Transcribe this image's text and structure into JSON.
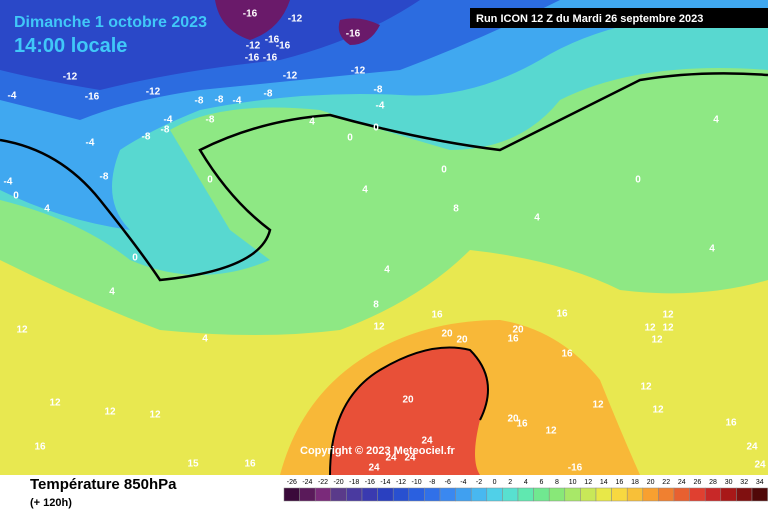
{
  "header": {
    "date": "Dimanche 1 octobre 2023",
    "time": "14:00 locale",
    "run": "Run ICON 12 Z du Mardi 26 septembre 2023"
  },
  "footer": {
    "title": "Température 850hPa",
    "lead": "(+ 120h)",
    "copyright": "Copyright © 2023 Meteociel.fr"
  },
  "legend": {
    "labels": [
      "-26",
      "-24",
      "-22",
      "-20",
      "-18",
      "-16",
      "-14",
      "-12",
      "-10",
      "-8",
      "-6",
      "-4",
      "-2",
      "0",
      "2",
      "4",
      "6",
      "8",
      "10",
      "12",
      "14",
      "16",
      "18",
      "20",
      "22",
      "24",
      "26",
      "28",
      "30",
      "32",
      "34"
    ],
    "colors": [
      "#3a0a3a",
      "#5a1a5a",
      "#7a2a7a",
      "#5a3a8a",
      "#4a3aa0",
      "#3a3ab0",
      "#2a40c0",
      "#2850d0",
      "#2a60e0",
      "#3070e8",
      "#3a88f0",
      "#40a0f0",
      "#48b8f0",
      "#50d0e8",
      "#58e0d0",
      "#60e8b0",
      "#70e890",
      "#88e878",
      "#a8e868",
      "#c8e858",
      "#e8e848",
      "#f8d840",
      "#f8c038",
      "#f8a030",
      "#f08030",
      "#e86030",
      "#e04030",
      "#c82828",
      "#a81818",
      "#801010",
      "#500808"
    ]
  },
  "map": {
    "contour_labels": [
      "-16",
      "-12",
      "-16",
      "-12",
      "-16",
      "-16",
      "-16",
      "-16",
      "-12",
      "-12",
      "-12",
      "-16",
      "-12",
      "-8",
      "-8",
      "-4",
      "-8",
      "-8",
      "-4",
      "-4",
      "-4",
      "-8",
      "-8",
      "-8",
      "-4",
      "4",
      "0",
      "0",
      "-4",
      "0",
      "-8",
      "0",
      "4",
      "0",
      "4",
      "0",
      "4",
      "8",
      "4",
      "0",
      "4",
      "4",
      "4",
      "8",
      "12",
      "4",
      "12",
      "16",
      "20",
      "20",
      "20",
      "16",
      "16",
      "12",
      "12",
      "12",
      "12",
      "16",
      "20",
      "12",
      "12",
      "12",
      "16",
      "12",
      "12",
      "12",
      "20",
      "16",
      "12",
      "24",
      "24",
      "24",
      "24",
      "15",
      "16",
      "-16",
      "16",
      "24",
      "24"
    ]
  }
}
